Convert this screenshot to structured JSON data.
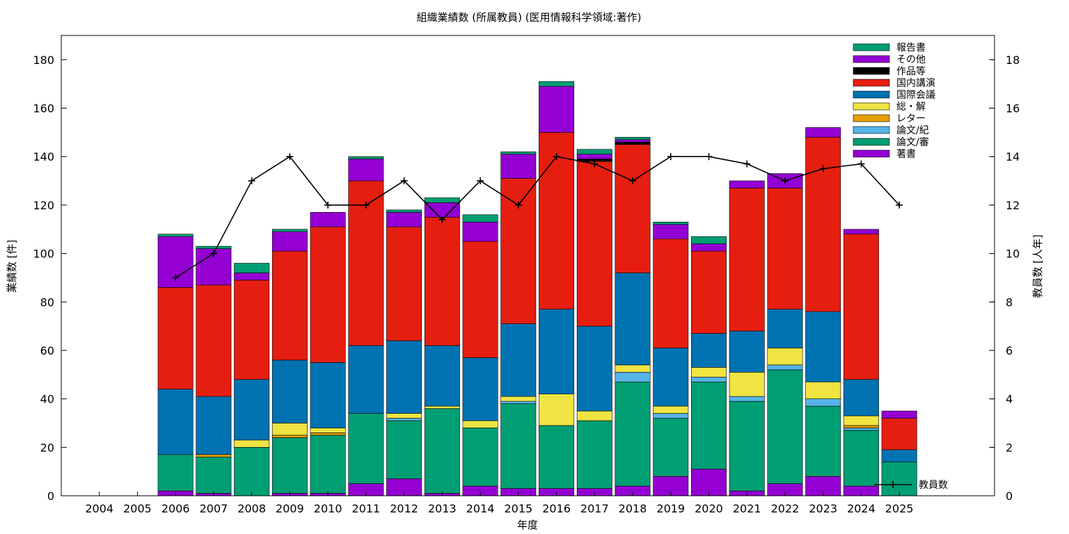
{
  "chart_data": {
    "type": "bar",
    "stacked": true,
    "title": "組織業績数 (所属教員) (医用情報科学領域:著作)",
    "xlabel": "年度",
    "ylabel": "業績数 [件]",
    "y2label": "教員数 [人年]",
    "ylim": [
      0,
      190
    ],
    "y2lim": [
      0,
      19
    ],
    "yticks": [
      "0",
      "20",
      "40",
      "60",
      "80",
      "100",
      "120",
      "140",
      "160",
      "180"
    ],
    "y2ticks": [
      "0",
      "2",
      "4",
      "6",
      "8",
      "10",
      "12",
      "14",
      "16",
      "18"
    ],
    "categories": [
      "2004",
      "2005",
      "2006",
      "2007",
      "2008",
      "2009",
      "2010",
      "2011",
      "2012",
      "2013",
      "2014",
      "2015",
      "2016",
      "2017",
      "2018",
      "2019",
      "2020",
      "2021",
      "2022",
      "2023",
      "2024",
      "2025"
    ],
    "legend_position": "top-right",
    "grid": false,
    "series": [
      {
        "name": "著書",
        "color": "#9400d3",
        "values": [
          0,
          0,
          2,
          1,
          0,
          1,
          1,
          5,
          7,
          1,
          4,
          3,
          3,
          3,
          4,
          8,
          11,
          2,
          5,
          8,
          4,
          0
        ]
      },
      {
        "name": "論文/審",
        "color": "#009e73",
        "values": [
          0,
          0,
          15,
          15,
          20,
          23,
          24,
          29,
          24,
          35,
          24,
          35,
          26,
          28,
          43,
          24,
          36,
          37,
          47,
          29,
          23,
          14
        ]
      },
      {
        "name": "論文/紀",
        "color": "#56b4e9",
        "values": [
          0,
          0,
          0,
          0,
          0,
          0,
          0,
          0,
          1,
          0,
          0,
          1,
          0,
          0,
          4,
          2,
          2,
          2,
          2,
          3,
          1,
          0
        ]
      },
      {
        "name": "レター",
        "color": "#e69f00",
        "values": [
          0,
          0,
          0,
          1,
          0,
          1,
          1,
          0,
          0,
          0,
          0,
          0,
          0,
          0,
          0,
          0,
          0,
          0,
          0,
          0,
          1,
          0
        ]
      },
      {
        "name": "総・解",
        "color": "#f0e442",
        "values": [
          0,
          0,
          0,
          0,
          3,
          5,
          2,
          0,
          2,
          1,
          3,
          2,
          13,
          4,
          3,
          3,
          4,
          10,
          7,
          7,
          4,
          0
        ]
      },
      {
        "name": "国際会議",
        "color": "#0072b2",
        "values": [
          0,
          0,
          27,
          24,
          25,
          26,
          27,
          28,
          30,
          25,
          26,
          30,
          35,
          35,
          38,
          24,
          14,
          17,
          16,
          29,
          15,
          5
        ]
      },
      {
        "name": "国内講演",
        "color": "#e51e10",
        "values": [
          0,
          0,
          42,
          46,
          41,
          45,
          56,
          68,
          47,
          53,
          48,
          60,
          73,
          68,
          53,
          45,
          34,
          59,
          50,
          72,
          60,
          13
        ]
      },
      {
        "name": "作品等",
        "color": "#000000",
        "values": [
          0,
          0,
          0,
          0,
          0,
          0,
          0,
          0,
          0,
          0,
          0,
          0,
          0,
          1,
          1,
          0,
          0,
          0,
          0,
          0,
          0,
          0
        ]
      },
      {
        "name": "その他",
        "color": "#9400d3",
        "values": [
          0,
          0,
          21,
          15,
          3,
          8,
          6,
          9,
          6,
          6,
          8,
          10,
          19,
          2,
          1,
          6,
          3,
          3,
          6,
          4,
          2,
          3
        ]
      },
      {
        "name": "報告書",
        "color": "#009e73",
        "values": [
          0,
          0,
          1,
          1,
          4,
          1,
          0,
          1,
          1,
          2,
          3,
          1,
          2,
          2,
          1,
          1,
          3,
          0,
          0,
          0,
          0,
          0
        ]
      }
    ],
    "line_series": {
      "name": "教員数",
      "axis": "y2",
      "color": "#000000",
      "values": [
        null,
        null,
        9,
        10,
        13,
        14,
        12,
        12,
        13,
        11.4,
        13,
        12,
        14,
        13.7,
        13,
        14,
        14,
        13.7,
        13,
        13.5,
        13.7,
        12
      ]
    }
  }
}
